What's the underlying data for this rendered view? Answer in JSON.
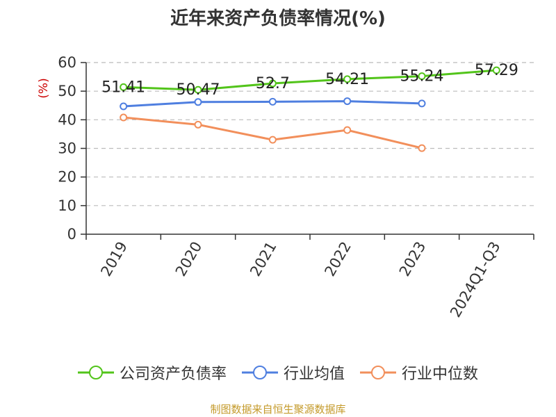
{
  "title": "近年来资产负债率情况(%)",
  "source": "制图数据来自恒生聚源数据库",
  "chart_data": {
    "type": "line",
    "title": "近年来资产负债率情况(%)",
    "ylabel": "(%)",
    "xlabel": "",
    "ylim": [
      0,
      60
    ],
    "yticks": [
      0,
      10,
      20,
      30,
      40,
      50,
      60
    ],
    "categories": [
      "2019",
      "2020",
      "2021",
      "2022",
      "2023",
      "2024Q1-Q3"
    ],
    "grid": true,
    "legend_position": "bottom",
    "series": [
      {
        "name": "公司资产负债率",
        "color": "#52c41a",
        "show_labels": true,
        "values": [
          51.41,
          50.47,
          52.7,
          54.21,
          55.24,
          57.29
        ]
      },
      {
        "name": "行业均值",
        "color": "#4f7fe0",
        "show_labels": false,
        "values": [
          44.7,
          46.2,
          46.3,
          46.5,
          45.7,
          null
        ]
      },
      {
        "name": "行业中位数",
        "color": "#f28f5b",
        "show_labels": false,
        "values": [
          40.8,
          38.3,
          33.0,
          36.4,
          30.1,
          null
        ]
      }
    ]
  }
}
